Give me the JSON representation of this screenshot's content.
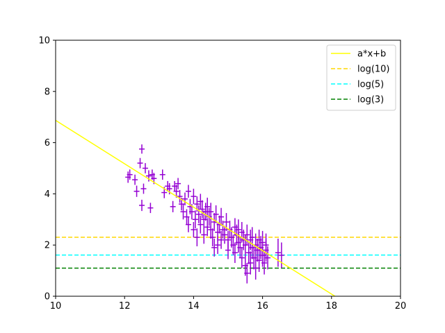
{
  "chart_data": {
    "type": "scatter",
    "xlim": [
      10,
      20
    ],
    "ylim": [
      0,
      10
    ],
    "x_ticks": [
      "10",
      "12",
      "14",
      "16",
      "18",
      "20"
    ],
    "y_ticks": [
      "0",
      "2",
      "4",
      "6",
      "8",
      "10"
    ],
    "grid": false,
    "legend_position": "top-right",
    "legend": [
      {
        "label": "a*x+b",
        "color": "#ffff00",
        "style": "solid"
      },
      {
        "label": "log(10)",
        "color": "#ffd700",
        "style": "dashed"
      },
      {
        "label": "log(5)",
        "color": "#00ffff",
        "style": "dashed"
      },
      {
        "label": "log(3)",
        "color": "#008000",
        "style": "dashed"
      }
    ],
    "fit_line": {
      "x": [
        10,
        18.1
      ],
      "y": [
        6.87,
        0
      ]
    },
    "hlines": [
      {
        "value": 2.3026,
        "color": "#ffd700"
      },
      {
        "value": 1.6094,
        "color": "#00ffff"
      },
      {
        "value": 1.0986,
        "color": "#008000"
      }
    ],
    "points_color": "#9400d3",
    "points": [
      {
        "x": 12.1,
        "y": 4.65,
        "yerr": 0.22
      },
      {
        "x": 12.15,
        "y": 4.75,
        "yerr": 0.2
      },
      {
        "x": 12.3,
        "y": 4.55,
        "yerr": 0.2
      },
      {
        "x": 12.35,
        "y": 4.1,
        "yerr": 0.22
      },
      {
        "x": 12.45,
        "y": 5.2,
        "yerr": 0.2
      },
      {
        "x": 12.5,
        "y": 5.75,
        "yerr": 0.18
      },
      {
        "x": 12.5,
        "y": 3.55,
        "yerr": 0.22
      },
      {
        "x": 12.55,
        "y": 4.2,
        "yerr": 0.2
      },
      {
        "x": 12.6,
        "y": 5.0,
        "yerr": 0.2
      },
      {
        "x": 12.7,
        "y": 4.7,
        "yerr": 0.22
      },
      {
        "x": 12.75,
        "y": 3.45,
        "yerr": 0.2
      },
      {
        "x": 12.8,
        "y": 4.75,
        "yerr": 0.2
      },
      {
        "x": 12.85,
        "y": 4.6,
        "yerr": 0.22
      },
      {
        "x": 13.1,
        "y": 4.75,
        "yerr": 0.2
      },
      {
        "x": 13.15,
        "y": 4.05,
        "yerr": 0.22
      },
      {
        "x": 13.25,
        "y": 4.3,
        "yerr": 0.2
      },
      {
        "x": 13.3,
        "y": 4.2,
        "yerr": 0.22
      },
      {
        "x": 13.4,
        "y": 3.5,
        "yerr": 0.22
      },
      {
        "x": 13.45,
        "y": 4.3,
        "yerr": 0.2
      },
      {
        "x": 13.5,
        "y": 4.1,
        "yerr": 0.25
      },
      {
        "x": 13.55,
        "y": 4.4,
        "yerr": 0.22
      },
      {
        "x": 13.6,
        "y": 3.9,
        "yerr": 0.25
      },
      {
        "x": 13.65,
        "y": 3.6,
        "yerr": 0.25
      },
      {
        "x": 13.7,
        "y": 3.3,
        "yerr": 0.3
      },
      {
        "x": 13.75,
        "y": 3.8,
        "yerr": 0.25
      },
      {
        "x": 13.8,
        "y": 3.1,
        "yerr": 0.3
      },
      {
        "x": 13.85,
        "y": 4.1,
        "yerr": 0.25
      },
      {
        "x": 13.85,
        "y": 2.8,
        "yerr": 0.3
      },
      {
        "x": 13.9,
        "y": 3.5,
        "yerr": 0.3
      },
      {
        "x": 13.95,
        "y": 3.3,
        "yerr": 0.3
      },
      {
        "x": 14.0,
        "y": 3.9,
        "yerr": 0.3
      },
      {
        "x": 14.0,
        "y": 2.6,
        "yerr": 0.3
      },
      {
        "x": 14.05,
        "y": 3.0,
        "yerr": 0.35
      },
      {
        "x": 14.1,
        "y": 3.6,
        "yerr": 0.3
      },
      {
        "x": 14.1,
        "y": 2.3,
        "yerr": 0.35
      },
      {
        "x": 14.15,
        "y": 3.2,
        "yerr": 0.35
      },
      {
        "x": 14.2,
        "y": 3.7,
        "yerr": 0.3
      },
      {
        "x": 14.2,
        "y": 2.8,
        "yerr": 0.35
      },
      {
        "x": 14.25,
        "y": 3.4,
        "yerr": 0.35
      },
      {
        "x": 14.3,
        "y": 3.0,
        "yerr": 0.35
      },
      {
        "x": 14.3,
        "y": 2.4,
        "yerr": 0.35
      },
      {
        "x": 14.35,
        "y": 3.3,
        "yerr": 0.35
      },
      {
        "x": 14.4,
        "y": 3.5,
        "yerr": 0.35
      },
      {
        "x": 14.4,
        "y": 2.7,
        "yerr": 0.35
      },
      {
        "x": 14.45,
        "y": 3.1,
        "yerr": 0.35
      },
      {
        "x": 14.5,
        "y": 2.6,
        "yerr": 0.35
      },
      {
        "x": 14.5,
        "y": 3.3,
        "yerr": 0.35
      },
      {
        "x": 14.55,
        "y": 2.3,
        "yerr": 0.35
      },
      {
        "x": 14.6,
        "y": 2.9,
        "yerr": 0.35
      },
      {
        "x": 14.6,
        "y": 1.9,
        "yerr": 0.35
      },
      {
        "x": 14.65,
        "y": 3.2,
        "yerr": 0.35
      },
      {
        "x": 14.7,
        "y": 2.5,
        "yerr": 0.35
      },
      {
        "x": 14.7,
        "y": 2.0,
        "yerr": 0.35
      },
      {
        "x": 14.75,
        "y": 2.8,
        "yerr": 0.35
      },
      {
        "x": 14.8,
        "y": 3.1,
        "yerr": 0.35
      },
      {
        "x": 14.8,
        "y": 2.2,
        "yerr": 0.35
      },
      {
        "x": 14.85,
        "y": 2.6,
        "yerr": 0.35
      },
      {
        "x": 14.9,
        "y": 2.4,
        "yerr": 0.35
      },
      {
        "x": 14.95,
        "y": 2.9,
        "yerr": 0.35
      },
      {
        "x": 15.0,
        "y": 2.2,
        "yerr": 0.35
      },
      {
        "x": 15.0,
        "y": 1.8,
        "yerr": 0.35
      },
      {
        "x": 15.05,
        "y": 2.6,
        "yerr": 0.35
      },
      {
        "x": 15.1,
        "y": 2.3,
        "yerr": 0.4
      },
      {
        "x": 15.15,
        "y": 2.0,
        "yerr": 0.4
      },
      {
        "x": 15.2,
        "y": 2.7,
        "yerr": 0.35
      },
      {
        "x": 15.2,
        "y": 1.7,
        "yerr": 0.4
      },
      {
        "x": 15.25,
        "y": 2.4,
        "yerr": 0.4
      },
      {
        "x": 15.3,
        "y": 2.1,
        "yerr": 0.4
      },
      {
        "x": 15.3,
        "y": 2.6,
        "yerr": 0.4
      },
      {
        "x": 15.35,
        "y": 1.9,
        "yerr": 0.4
      },
      {
        "x": 15.4,
        "y": 2.5,
        "yerr": 0.4
      },
      {
        "x": 15.4,
        "y": 1.5,
        "yerr": 0.4
      },
      {
        "x": 15.45,
        "y": 2.2,
        "yerr": 0.4
      },
      {
        "x": 15.5,
        "y": 1.2,
        "yerr": 0.4
      },
      {
        "x": 15.5,
        "y": 2.0,
        "yerr": 0.4
      },
      {
        "x": 15.55,
        "y": 2.4,
        "yerr": 0.4
      },
      {
        "x": 15.55,
        "y": 0.9,
        "yerr": 0.4
      },
      {
        "x": 15.6,
        "y": 1.7,
        "yerr": 0.45
      },
      {
        "x": 15.65,
        "y": 2.2,
        "yerr": 0.4
      },
      {
        "x": 15.65,
        "y": 1.3,
        "yerr": 0.45
      },
      {
        "x": 15.7,
        "y": 1.9,
        "yerr": 0.45
      },
      {
        "x": 15.7,
        "y": 2.3,
        "yerr": 0.4
      },
      {
        "x": 15.75,
        "y": 1.5,
        "yerr": 0.45
      },
      {
        "x": 15.8,
        "y": 2.0,
        "yerr": 0.45
      },
      {
        "x": 15.8,
        "y": 1.1,
        "yerr": 0.45
      },
      {
        "x": 15.85,
        "y": 1.8,
        "yerr": 0.45
      },
      {
        "x": 15.9,
        "y": 2.2,
        "yerr": 0.4
      },
      {
        "x": 15.9,
        "y": 1.4,
        "yerr": 0.45
      },
      {
        "x": 15.95,
        "y": 1.9,
        "yerr": 0.45
      },
      {
        "x": 16.0,
        "y": 1.6,
        "yerr": 0.45
      },
      {
        "x": 16.0,
        "y": 2.1,
        "yerr": 0.45
      },
      {
        "x": 16.05,
        "y": 1.3,
        "yerr": 0.45
      },
      {
        "x": 16.1,
        "y": 1.8,
        "yerr": 0.45
      },
      {
        "x": 16.1,
        "y": 2.0,
        "yerr": 0.45
      },
      {
        "x": 16.15,
        "y": 1.5,
        "yerr": 0.45
      },
      {
        "x": 16.45,
        "y": 1.7,
        "yerr": 0.55
      },
      {
        "x": 16.55,
        "y": 1.6,
        "yerr": 0.5
      }
    ]
  }
}
